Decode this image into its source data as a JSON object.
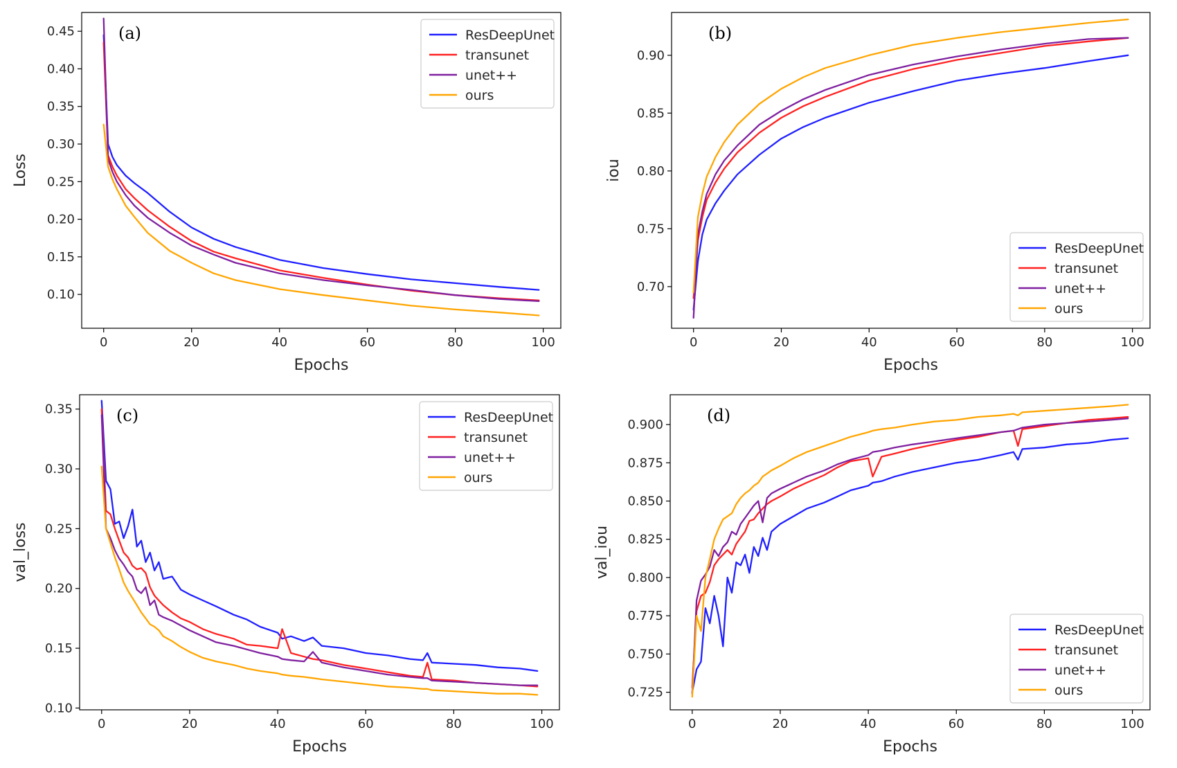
{
  "chart_data": [
    {
      "type": "line",
      "panel_label": "(a)",
      "xlabel": "Epochs",
      "ylabel": "Loss",
      "xlim": [
        -5,
        104
      ],
      "ylim": [
        0.055,
        0.475
      ],
      "xticks": [
        0,
        20,
        40,
        60,
        80,
        100
      ],
      "yticks": [
        0.1,
        0.15,
        0.2,
        0.25,
        0.3,
        0.35,
        0.4,
        0.45
      ],
      "ytick_decimals": 2,
      "legend": "top-right",
      "x": [
        0,
        1,
        2,
        3,
        5,
        7,
        10,
        15,
        20,
        25,
        30,
        40,
        50,
        60,
        70,
        80,
        90,
        99
      ],
      "series": [
        {
          "name": "ResDeepUnet",
          "color": "#1f1fff",
          "values": [
            0.445,
            0.3,
            0.283,
            0.272,
            0.258,
            0.248,
            0.235,
            0.21,
            0.189,
            0.174,
            0.163,
            0.146,
            0.135,
            0.127,
            0.12,
            0.115,
            0.11,
            0.106
          ]
        },
        {
          "name": "transunet",
          "color": "#ff2020",
          "values": [
            0.435,
            0.285,
            0.27,
            0.258,
            0.24,
            0.228,
            0.212,
            0.19,
            0.171,
            0.157,
            0.148,
            0.132,
            0.122,
            0.113,
            0.105,
            0.099,
            0.095,
            0.092
          ]
        },
        {
          "name": "unet++",
          "color": "#7f1f9f",
          "values": [
            0.467,
            0.28,
            0.263,
            0.25,
            0.232,
            0.218,
            0.202,
            0.182,
            0.165,
            0.153,
            0.142,
            0.128,
            0.119,
            0.112,
            0.106,
            0.099,
            0.094,
            0.091
          ]
        },
        {
          "name": "ours",
          "color": "#ffa500",
          "values": [
            0.326,
            0.27,
            0.253,
            0.24,
            0.218,
            0.203,
            0.182,
            0.158,
            0.142,
            0.128,
            0.119,
            0.107,
            0.099,
            0.092,
            0.085,
            0.08,
            0.076,
            0.072
          ]
        }
      ]
    },
    {
      "type": "line",
      "panel_label": "(b)",
      "xlabel": "Epochs",
      "ylabel": "iou",
      "xlim": [
        -5,
        104
      ],
      "ylim": [
        0.664,
        0.937
      ],
      "xticks": [
        0,
        20,
        40,
        60,
        80,
        100
      ],
      "yticks": [
        0.7,
        0.75,
        0.8,
        0.85,
        0.9
      ],
      "ytick_decimals": 2,
      "legend": "bottom-right",
      "x": [
        0,
        1,
        2,
        3,
        5,
        7,
        10,
        15,
        20,
        25,
        30,
        40,
        50,
        60,
        70,
        80,
        90,
        99
      ],
      "series": [
        {
          "name": "ResDeepUnet",
          "color": "#1f1fff",
          "values": [
            0.68,
            0.722,
            0.745,
            0.758,
            0.772,
            0.783,
            0.797,
            0.814,
            0.828,
            0.838,
            0.846,
            0.859,
            0.869,
            0.878,
            0.884,
            0.889,
            0.895,
            0.9
          ]
        },
        {
          "name": "transunet",
          "color": "#ff2020",
          "values": [
            0.69,
            0.74,
            0.76,
            0.775,
            0.79,
            0.802,
            0.816,
            0.833,
            0.846,
            0.856,
            0.864,
            0.878,
            0.888,
            0.896,
            0.902,
            0.908,
            0.912,
            0.915
          ]
        },
        {
          "name": "unet++",
          "color": "#7f1f9f",
          "values": [
            0.673,
            0.745,
            0.765,
            0.78,
            0.797,
            0.809,
            0.822,
            0.84,
            0.852,
            0.862,
            0.87,
            0.883,
            0.892,
            0.899,
            0.905,
            0.91,
            0.914,
            0.915
          ]
        },
        {
          "name": "ours",
          "color": "#ffa500",
          "values": [
            0.695,
            0.76,
            0.78,
            0.795,
            0.812,
            0.825,
            0.84,
            0.858,
            0.871,
            0.881,
            0.889,
            0.9,
            0.909,
            0.915,
            0.92,
            0.924,
            0.928,
            0.931
          ]
        }
      ]
    },
    {
      "type": "line",
      "panel_label": "(c)",
      "xlabel": "Epochs",
      "ylabel": "val_loss",
      "xlim": [
        -5,
        104
      ],
      "ylim": [
        0.0985,
        0.362
      ],
      "xticks": [
        0,
        20,
        40,
        60,
        80,
        100
      ],
      "yticks": [
        0.1,
        0.15,
        0.2,
        0.25,
        0.3,
        0.35
      ],
      "ytick_decimals": 2,
      "legend": "top-right",
      "x": [
        0,
        1,
        2,
        3,
        4,
        5,
        6,
        7,
        8,
        9,
        10,
        11,
        12,
        13,
        14,
        16,
        18,
        20,
        23,
        26,
        30,
        33,
        36,
        40,
        41,
        43,
        46,
        48,
        50,
        55,
        60,
        65,
        70,
        73,
        74,
        75,
        80,
        85,
        90,
        95,
        99
      ],
      "series": [
        {
          "name": "ResDeepUnet",
          "color": "#1f1fff",
          "values": [
            0.357,
            0.29,
            0.283,
            0.254,
            0.256,
            0.242,
            0.252,
            0.266,
            0.235,
            0.24,
            0.222,
            0.23,
            0.215,
            0.222,
            0.208,
            0.21,
            0.199,
            0.195,
            0.19,
            0.185,
            0.178,
            0.174,
            0.168,
            0.163,
            0.158,
            0.16,
            0.156,
            0.159,
            0.152,
            0.15,
            0.146,
            0.144,
            0.141,
            0.14,
            0.146,
            0.138,
            0.137,
            0.136,
            0.134,
            0.133,
            0.131
          ]
        },
        {
          "name": "transunet",
          "color": "#ff2020",
          "values": [
            0.35,
            0.265,
            0.262,
            0.25,
            0.24,
            0.23,
            0.226,
            0.219,
            0.216,
            0.217,
            0.213,
            0.201,
            0.194,
            0.19,
            0.186,
            0.18,
            0.175,
            0.172,
            0.166,
            0.162,
            0.158,
            0.153,
            0.152,
            0.15,
            0.166,
            0.146,
            0.143,
            0.141,
            0.14,
            0.136,
            0.133,
            0.13,
            0.127,
            0.126,
            0.138,
            0.124,
            0.123,
            0.121,
            0.12,
            0.119,
            0.118
          ]
        },
        {
          "name": "unet++",
          "color": "#7f1f9f",
          "values": [
            0.345,
            0.25,
            0.242,
            0.232,
            0.225,
            0.22,
            0.214,
            0.21,
            0.199,
            0.196,
            0.201,
            0.186,
            0.19,
            0.178,
            0.176,
            0.173,
            0.169,
            0.165,
            0.16,
            0.155,
            0.152,
            0.149,
            0.146,
            0.143,
            0.141,
            0.14,
            0.139,
            0.147,
            0.138,
            0.134,
            0.131,
            0.128,
            0.126,
            0.125,
            0.125,
            0.123,
            0.122,
            0.121,
            0.12,
            0.119,
            0.119
          ]
        },
        {
          "name": "ours",
          "color": "#ffa500",
          "values": [
            0.302,
            0.25,
            0.238,
            0.226,
            0.216,
            0.205,
            0.198,
            0.192,
            0.186,
            0.18,
            0.175,
            0.17,
            0.168,
            0.165,
            0.16,
            0.156,
            0.151,
            0.147,
            0.142,
            0.139,
            0.136,
            0.133,
            0.131,
            0.129,
            0.128,
            0.127,
            0.126,
            0.125,
            0.124,
            0.122,
            0.12,
            0.118,
            0.117,
            0.116,
            0.116,
            0.115,
            0.114,
            0.113,
            0.112,
            0.112,
            0.111
          ]
        }
      ]
    },
    {
      "type": "line",
      "panel_label": "(d)",
      "xlabel": "Epochs",
      "ylabel": "val_iou",
      "xlim": [
        -5,
        104
      ],
      "ylim": [
        0.7135,
        0.9195
      ],
      "xticks": [
        0,
        20,
        40,
        60,
        80,
        100
      ],
      "yticks": [
        0.725,
        0.75,
        0.775,
        0.8,
        0.825,
        0.85,
        0.875,
        0.9
      ],
      "ytick_decimals": 3,
      "legend": "bottom-right",
      "x": [
        0,
        1,
        2,
        3,
        4,
        5,
        6,
        7,
        8,
        9,
        10,
        11,
        12,
        13,
        14,
        15,
        16,
        17,
        18,
        20,
        23,
        26,
        30,
        33,
        36,
        40,
        41,
        43,
        46,
        50,
        55,
        60,
        65,
        70,
        73,
        74,
        75,
        80,
        85,
        90,
        95,
        99
      ],
      "series": [
        {
          "name": "ResDeepUnet",
          "color": "#1f1fff",
          "values": [
            0.725,
            0.74,
            0.745,
            0.78,
            0.77,
            0.788,
            0.775,
            0.755,
            0.8,
            0.79,
            0.81,
            0.808,
            0.815,
            0.803,
            0.82,
            0.814,
            0.826,
            0.818,
            0.83,
            0.835,
            0.84,
            0.845,
            0.849,
            0.853,
            0.857,
            0.86,
            0.862,
            0.863,
            0.866,
            0.869,
            0.872,
            0.875,
            0.877,
            0.88,
            0.882,
            0.877,
            0.884,
            0.885,
            0.887,
            0.888,
            0.89,
            0.891
          ]
        },
        {
          "name": "transunet",
          "color": "#ff2020",
          "values": [
            0.728,
            0.778,
            0.788,
            0.79,
            0.797,
            0.808,
            0.812,
            0.815,
            0.818,
            0.815,
            0.822,
            0.826,
            0.83,
            0.837,
            0.838,
            0.842,
            0.845,
            0.848,
            0.85,
            0.853,
            0.858,
            0.862,
            0.867,
            0.872,
            0.876,
            0.878,
            0.866,
            0.879,
            0.881,
            0.884,
            0.887,
            0.89,
            0.892,
            0.895,
            0.896,
            0.886,
            0.897,
            0.899,
            0.901,
            0.903,
            0.904,
            0.905
          ]
        },
        {
          "name": "unet++",
          "color": "#7f1f9f",
          "values": [
            0.724,
            0.785,
            0.798,
            0.802,
            0.807,
            0.818,
            0.814,
            0.82,
            0.823,
            0.83,
            0.828,
            0.835,
            0.839,
            0.843,
            0.847,
            0.85,
            0.836,
            0.852,
            0.855,
            0.858,
            0.862,
            0.866,
            0.87,
            0.874,
            0.877,
            0.88,
            0.882,
            0.883,
            0.885,
            0.887,
            0.889,
            0.891,
            0.893,
            0.895,
            0.896,
            0.897,
            0.898,
            0.9,
            0.901,
            0.902,
            0.903,
            0.904
          ]
        },
        {
          "name": "ours",
          "color": "#ffa500",
          "values": [
            0.722,
            0.775,
            0.765,
            0.8,
            0.812,
            0.825,
            0.832,
            0.838,
            0.84,
            0.842,
            0.848,
            0.852,
            0.855,
            0.857,
            0.86,
            0.862,
            0.866,
            0.868,
            0.87,
            0.873,
            0.878,
            0.882,
            0.886,
            0.889,
            0.892,
            0.895,
            0.896,
            0.897,
            0.898,
            0.9,
            0.902,
            0.903,
            0.905,
            0.906,
            0.907,
            0.906,
            0.908,
            0.909,
            0.91,
            0.911,
            0.912,
            0.913
          ]
        }
      ]
    }
  ]
}
